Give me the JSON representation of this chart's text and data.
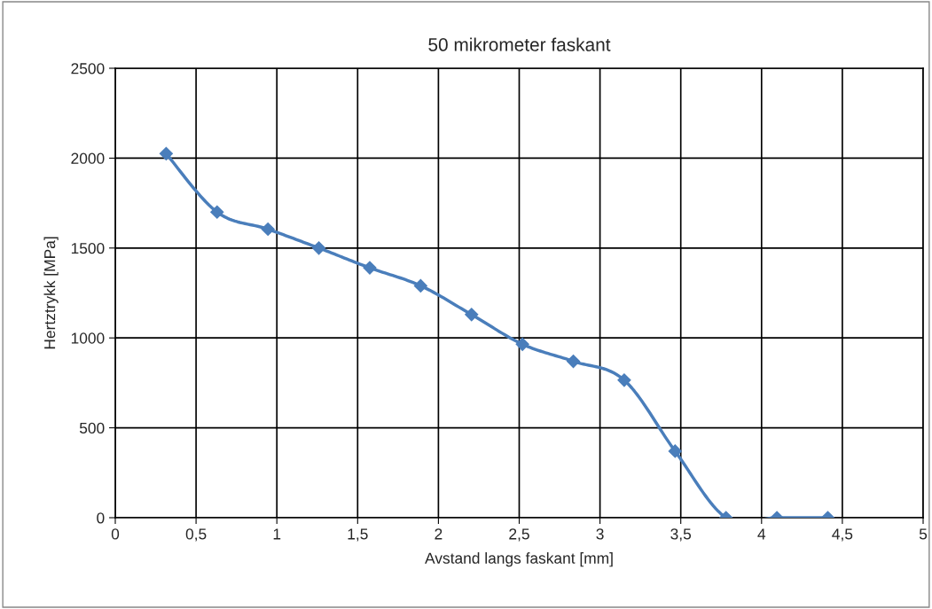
{
  "chart_data": {
    "type": "line",
    "title": "50 mikrometer faskant",
    "xlabel": "Avstand langs faskant [mm]",
    "ylabel": "Hertztrykk [MPa]",
    "x": [
      0.315,
      0.63,
      0.945,
      1.26,
      1.575,
      1.89,
      2.205,
      2.52,
      2.835,
      3.15,
      3.465,
      3.78,
      4.095,
      4.41
    ],
    "series": [
      {
        "color": "#4a7ebb",
        "values": [
          2025,
          1700,
          1605,
          1500,
          1390,
          1290,
          1130,
          965,
          870,
          765,
          370,
          0,
          0,
          0
        ]
      }
    ],
    "xlim": [
      0,
      5
    ],
    "xticks": [
      0,
      {
        "value": 0.5,
        "label": "0,5"
      },
      1,
      {
        "value": 1.5,
        "label": "1,5"
      },
      2,
      {
        "value": 2.5,
        "label": "2,5"
      },
      3,
      {
        "value": 3.5,
        "label": "3,5"
      },
      4,
      {
        "value": 4.5,
        "label": "4,5"
      },
      5
    ],
    "ylim": [
      0,
      2500
    ],
    "yticks": [
      0,
      500,
      1000,
      1500,
      2000,
      2500
    ],
    "grid": true,
    "marker": "diamond",
    "line_style": "solid",
    "legend": false
  }
}
